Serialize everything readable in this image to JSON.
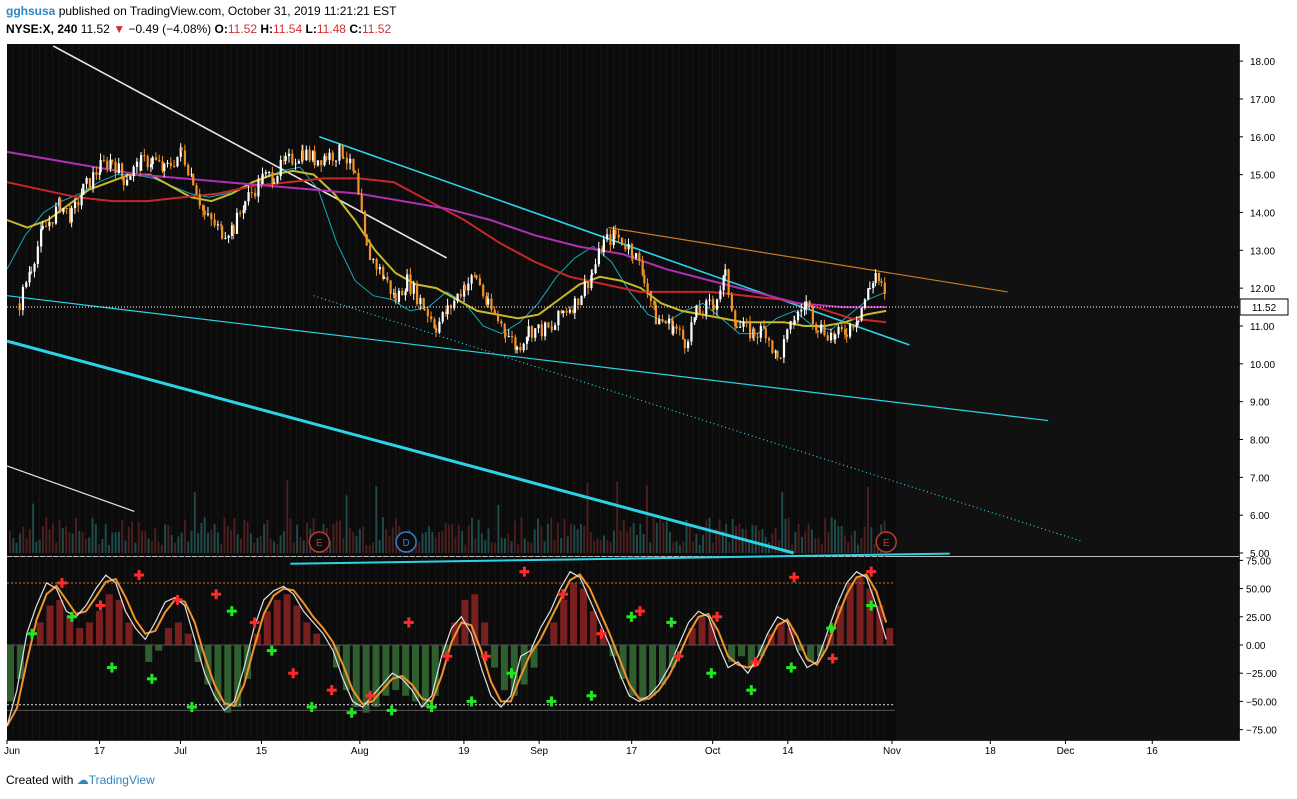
{
  "header": {
    "user": "gghsusa",
    "published_text": "published on TradingView.com, October 31, 2019 11:21:21 EST",
    "symbol": "NYSE:X, 240",
    "last": "11.52",
    "change": "−0.49 (−4.08%)",
    "o_label": "O:",
    "o_value": "11.52",
    "h_label": "H:",
    "h_value": "11.54",
    "l_label": "L:",
    "l_value": "11.48",
    "c_label": "C:",
    "c_value": "11.52"
  },
  "footer": {
    "created_with": "Created with",
    "brand": "TradingView"
  },
  "colors": {
    "background": "#0b0b0b",
    "up_candle": "#ffffff",
    "down_candle": "#f0932b",
    "ma_fast": "#14a9b5",
    "ma_mid": "#c8b82a",
    "ma_slow": "#c62828",
    "ma_long": "#b02fb5",
    "trendline_cyan": "#2ad4e6",
    "trendline_white": "#e6e6e6",
    "trendline_orange": "#c77a25",
    "osc_k": "#e0e0e0",
    "osc_d": "#f0932b",
    "hist_pos": "#7a1f1f",
    "hist_neg": "#2f5f2f",
    "buy_marker": "#22e622",
    "sell_marker": "#ff2a2a"
  },
  "chart_data": [
    {
      "type": "candlestick",
      "symbol": "NYSE:X",
      "interval": "240",
      "price_axis": {
        "ticks": [
          "18.00",
          "17.00",
          "16.00",
          "15.00",
          "14.00",
          "13.00",
          "12.00",
          "11.00",
          "10.00",
          "9.00",
          "8.00",
          "7.00",
          "6.00",
          "5.00"
        ],
        "range": [
          5.0,
          18.4
        ]
      },
      "last_price_label": "11.52",
      "time_axis_labels": [
        "Jun",
        "17",
        "Jul",
        "15",
        "Aug",
        "19",
        "Sep",
        "17",
        "Oct",
        "14",
        "Nov",
        "18",
        "Dec",
        "16"
      ],
      "event_markers": [
        {
          "label": "E",
          "date": "2019-07-25"
        },
        {
          "label": "D",
          "date": "2019-08-09"
        },
        {
          "label": "E",
          "date": "2019-10-31"
        }
      ],
      "price_path": [
        {
          "date": "2019-06-03",
          "close": 11.6
        },
        {
          "date": "2019-06-05",
          "close": 12.6
        },
        {
          "date": "2019-06-07",
          "close": 13.5
        },
        {
          "date": "2019-06-10",
          "close": 14.2
        },
        {
          "date": "2019-06-12",
          "close": 13.9
        },
        {
          "date": "2019-06-14",
          "close": 14.6
        },
        {
          "date": "2019-06-17",
          "close": 15.2
        },
        {
          "date": "2019-06-19",
          "close": 15.4
        },
        {
          "date": "2019-06-21",
          "close": 14.9
        },
        {
          "date": "2019-06-24",
          "close": 15.3
        },
        {
          "date": "2019-06-26",
          "close": 15.4
        },
        {
          "date": "2019-06-28",
          "close": 15.1
        },
        {
          "date": "2019-07-01",
          "close": 15.6
        },
        {
          "date": "2019-07-03",
          "close": 14.9
        },
        {
          "date": "2019-07-05",
          "close": 13.9
        },
        {
          "date": "2019-07-08",
          "close": 13.5
        },
        {
          "date": "2019-07-10",
          "close": 13.6
        },
        {
          "date": "2019-07-12",
          "close": 14.3
        },
        {
          "date": "2019-07-15",
          "close": 14.9
        },
        {
          "date": "2019-07-17",
          "close": 15.0
        },
        {
          "date": "2019-07-19",
          "close": 15.3
        },
        {
          "date": "2019-07-22",
          "close": 15.6
        },
        {
          "date": "2019-07-24",
          "close": 15.4
        },
        {
          "date": "2019-07-26",
          "close": 15.5
        },
        {
          "date": "2019-07-29",
          "close": 15.6
        },
        {
          "date": "2019-07-31",
          "close": 14.9
        },
        {
          "date": "2019-08-02",
          "close": 13.0
        },
        {
          "date": "2019-08-05",
          "close": 12.3
        },
        {
          "date": "2019-08-07",
          "close": 11.7
        },
        {
          "date": "2019-08-09",
          "close": 12.2
        },
        {
          "date": "2019-08-12",
          "close": 11.5
        },
        {
          "date": "2019-08-14",
          "close": 11.0
        },
        {
          "date": "2019-08-16",
          "close": 11.4
        },
        {
          "date": "2019-08-19",
          "close": 12.1
        },
        {
          "date": "2019-08-21",
          "close": 12.3
        },
        {
          "date": "2019-08-23",
          "close": 11.5
        },
        {
          "date": "2019-08-26",
          "close": 10.9
        },
        {
          "date": "2019-08-28",
          "close": 10.4
        },
        {
          "date": "2019-08-30",
          "close": 10.9
        },
        {
          "date": "2019-09-03",
          "close": 10.9
        },
        {
          "date": "2019-09-05",
          "close": 11.4
        },
        {
          "date": "2019-09-07",
          "close": 11.6
        },
        {
          "date": "2019-09-10",
          "close": 12.4
        },
        {
          "date": "2019-09-12",
          "close": 13.2
        },
        {
          "date": "2019-09-14",
          "close": 13.4
        },
        {
          "date": "2019-09-17",
          "close": 13.0
        },
        {
          "date": "2019-09-19",
          "close": 12.3
        },
        {
          "date": "2019-09-21",
          "close": 11.2
        },
        {
          "date": "2019-09-24",
          "close": 11.0
        },
        {
          "date": "2019-09-26",
          "close": 10.6
        },
        {
          "date": "2019-09-28",
          "close": 11.3
        },
        {
          "date": "2019-10-01",
          "close": 11.6
        },
        {
          "date": "2019-10-03",
          "close": 12.3
        },
        {
          "date": "2019-10-05",
          "close": 11.0
        },
        {
          "date": "2019-10-08",
          "close": 10.8
        },
        {
          "date": "2019-10-10",
          "close": 10.9
        },
        {
          "date": "2019-10-12",
          "close": 10.1
        },
        {
          "date": "2019-10-15",
          "close": 11.2
        },
        {
          "date": "2019-10-17",
          "close": 11.6
        },
        {
          "date": "2019-10-19",
          "close": 11.0
        },
        {
          "date": "2019-10-22",
          "close": 10.7
        },
        {
          "date": "2019-10-24",
          "close": 10.9
        },
        {
          "date": "2019-10-26",
          "close": 11.3
        },
        {
          "date": "2019-10-28",
          "close": 12.0
        },
        {
          "date": "2019-10-29",
          "close": 12.4
        },
        {
          "date": "2019-10-30",
          "close": 12.0
        },
        {
          "date": "2019-10-31",
          "close": 11.52
        }
      ],
      "moving_averages": [
        {
          "color": "ma_fast",
          "values": [
            12.5,
            13.4,
            14.0,
            14.3,
            14.5,
            14.8,
            15.0,
            15.0,
            14.9,
            14.7,
            14.5,
            14.4,
            14.5,
            14.7,
            14.9,
            15.1,
            15.2,
            14.6,
            13.2,
            12.2,
            11.8,
            11.7,
            11.4,
            11.5,
            11.9,
            11.6,
            11.0,
            10.8,
            11.1,
            11.6,
            12.3,
            12.8,
            13.1,
            12.7,
            11.9,
            11.3,
            11.1,
            11.4,
            11.6,
            11.2,
            10.8,
            10.8,
            11.2,
            11.4,
            11.0,
            10.9,
            11.3,
            11.7,
            11.9
          ]
        },
        {
          "color": "ma_mid",
          "values": [
            13.8,
            13.6,
            13.8,
            14.2,
            14.6,
            14.8,
            15.0,
            15.0,
            14.7,
            14.4,
            14.3,
            14.5,
            14.8,
            15.0,
            15.1,
            15.0,
            14.5,
            13.8,
            13.0,
            12.4,
            12.1,
            12.0,
            11.7,
            11.4,
            11.3,
            11.2,
            11.3,
            11.7,
            12.1,
            12.3,
            12.2,
            12.0,
            11.6,
            11.4,
            11.3,
            11.2,
            11.1,
            11.1,
            11.1,
            11.0,
            11.0,
            11.1,
            11.3,
            11.4
          ]
        },
        {
          "color": "ma_slow",
          "values": [
            14.8,
            14.6,
            14.4,
            14.3,
            14.3,
            14.4,
            14.5,
            14.7,
            14.8,
            14.9,
            14.9,
            14.8,
            14.3,
            13.8,
            13.2,
            12.7,
            12.3,
            12.1,
            11.9,
            11.9,
            11.9,
            11.8,
            11.7,
            11.5,
            11.2,
            11.1
          ]
        },
        {
          "color": "ma_long",
          "values": [
            15.6,
            15.4,
            15.2,
            15.0,
            14.9,
            14.8,
            14.7,
            14.6,
            14.5,
            14.3,
            14.1,
            13.8,
            13.4,
            13.1,
            12.9,
            12.5,
            12.2,
            11.9,
            11.6,
            11.5,
            11.5
          ]
        }
      ],
      "trendlines": [
        {
          "color": "trendline_white",
          "from": {
            "date": "2019-06-09",
            "price": 18.4
          },
          "to": {
            "date": "2019-08-16",
            "price": 12.8
          }
        },
        {
          "color": "trendline_white",
          "from": {
            "date": "2019-06-01",
            "price": 7.3
          },
          "to": {
            "date": "2019-06-23",
            "price": 6.1
          }
        },
        {
          "color": "trendline_cyan",
          "from": {
            "date": "2019-07-25",
            "price": 16.0
          },
          "to": {
            "date": "2019-11-04",
            "price": 10.5
          }
        },
        {
          "color": "trendline_cyan",
          "from": {
            "date": "2019-06-01",
            "price": 10.6
          },
          "to": {
            "date": "2019-10-15",
            "price": 5.0
          }
        },
        {
          "color": "trendline_cyan",
          "from": {
            "date": "2019-06-01",
            "price": 11.8
          },
          "to": {
            "date": "2019-11-28",
            "price": 8.5
          }
        },
        {
          "color": "trendline_cyan",
          "from": {
            "date": "2019-07-24",
            "price": 11.8
          },
          "to": {
            "date": "2019-12-04",
            "price": 5.3
          }
        },
        {
          "color": "trendline_orange",
          "from": {
            "date": "2019-09-13",
            "price": 13.6
          },
          "to": {
            "date": "2019-11-21",
            "price": 11.9
          }
        }
      ]
    },
    {
      "type": "line",
      "name": "oscillator",
      "y_axis": {
        "ticks": [
          "75.00",
          "50.00",
          "25.00",
          "0.00",
          "−25.00",
          "−50.00",
          "−75.00"
        ],
        "range": [
          -78,
          78
        ]
      },
      "levels": [
        55,
        -53
      ],
      "k_values": [
        -72,
        -40,
        10,
        35,
        55,
        50,
        30,
        25,
        35,
        50,
        62,
        55,
        30,
        15,
        5,
        20,
        38,
        42,
        35,
        5,
        -25,
        -45,
        -58,
        -50,
        -20,
        15,
        40,
        48,
        52,
        45,
        30,
        20,
        10,
        -5,
        -30,
        -50,
        -55,
        -45,
        -35,
        -25,
        -30,
        -40,
        -55,
        -45,
        -10,
        15,
        25,
        10,
        -20,
        -45,
        -55,
        -45,
        -10,
        -5,
        15,
        30,
        50,
        65,
        60,
        40,
        20,
        0,
        -25,
        -45,
        -50,
        -45,
        -35,
        -20,
        0,
        20,
        30,
        25,
        0,
        -20,
        -15,
        -25,
        -10,
        10,
        25,
        20,
        -5,
        -20,
        -15,
        10,
        35,
        55,
        65,
        60,
        35,
        5
      ],
      "histogram": [
        -50,
        -30,
        0,
        20,
        35,
        40,
        25,
        15,
        20,
        30,
        45,
        40,
        20,
        0,
        -15,
        -5,
        15,
        20,
        10,
        -15,
        -35,
        -50,
        -60,
        -55,
        -30,
        10,
        30,
        40,
        45,
        35,
        20,
        10,
        0,
        -20,
        -40,
        -55,
        -60,
        -55,
        -45,
        -40,
        -45,
        -50,
        -55,
        -45,
        -10,
        20,
        40,
        45,
        20,
        -20,
        -40,
        -45,
        -35,
        -20,
        0,
        20,
        40,
        55,
        50,
        30,
        10,
        -10,
        -30,
        -45,
        -50,
        -45,
        -35,
        -20,
        0,
        15,
        25,
        20,
        0,
        -15,
        -10,
        -20,
        -10,
        10,
        20,
        15,
        -5,
        -15,
        -10,
        10,
        35,
        55,
        60,
        50,
        35,
        15
      ],
      "buy_signals_k": [
        10,
        25,
        -20,
        -30,
        -55,
        30,
        -5,
        -55,
        -60,
        -58,
        -55,
        -50,
        -25,
        -50,
        -45,
        25,
        20,
        -25,
        -40,
        -20,
        15,
        35
      ],
      "sell_signals_k": [
        55,
        35,
        62,
        40,
        45,
        20,
        -25,
        -40,
        -45,
        20,
        -10,
        -10,
        65,
        45,
        10,
        30,
        -10,
        25,
        -15,
        60,
        -12,
        65
      ]
    }
  ]
}
